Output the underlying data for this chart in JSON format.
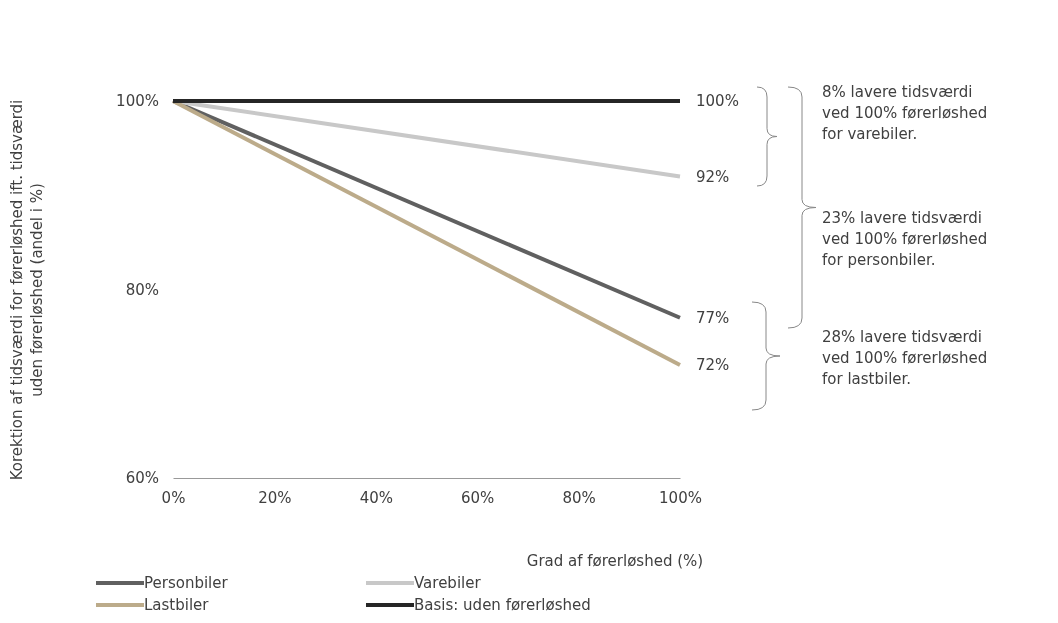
{
  "chart_data": {
    "type": "line",
    "xlabel": "Grad af førerløshed (%)",
    "ylabel": "Korektion af tidsværdi for førerløshed ift. tidsværdi\nuden førerløshed (andel i %)",
    "x": [
      0,
      100
    ],
    "xlim": [
      0,
      100
    ],
    "xticks": [
      {
        "value": 0,
        "label": "0%"
      },
      {
        "value": 20,
        "label": "20%"
      },
      {
        "value": 40,
        "label": "40%"
      },
      {
        "value": 60,
        "label": "60%"
      },
      {
        "value": 80,
        "label": "80%"
      },
      {
        "value": 100,
        "label": "100%"
      }
    ],
    "ylim": [
      60,
      100
    ],
    "yticks": [
      {
        "value": 60,
        "label": "60%"
      },
      {
        "value": 80,
        "label": "80%"
      },
      {
        "value": 100,
        "label": "100%"
      }
    ],
    "series": [
      {
        "name": "Personbiler",
        "color": "#606060",
        "values": [
          100,
          77
        ],
        "value_labels": [
          null,
          "77%"
        ]
      },
      {
        "name": "Varebiler",
        "color": "#c8c8c8",
        "values": [
          100,
          92
        ],
        "value_labels": [
          null,
          "92%"
        ]
      },
      {
        "name": "Lastbiler",
        "color": "#bcab8a",
        "values": [
          100,
          72
        ],
        "value_labels": [
          null,
          "72%"
        ]
      },
      {
        "name": "Basis: uden førerløshed",
        "color": "#262626",
        "values": [
          100,
          100
        ],
        "value_labels": [
          null,
          "100%"
        ]
      }
    ],
    "annotations": [
      "8% lavere tidsværdi ved 100% førerløshed for varebiler.",
      "23% lavere tidsværdi ved 100% førerløshed for personbiler.",
      "28% lavere tidsværdi ved 100% førerløshed for lastbiler."
    ],
    "grid": false,
    "legend": "bottom",
    "marker": "none",
    "line_style": "solid"
  }
}
